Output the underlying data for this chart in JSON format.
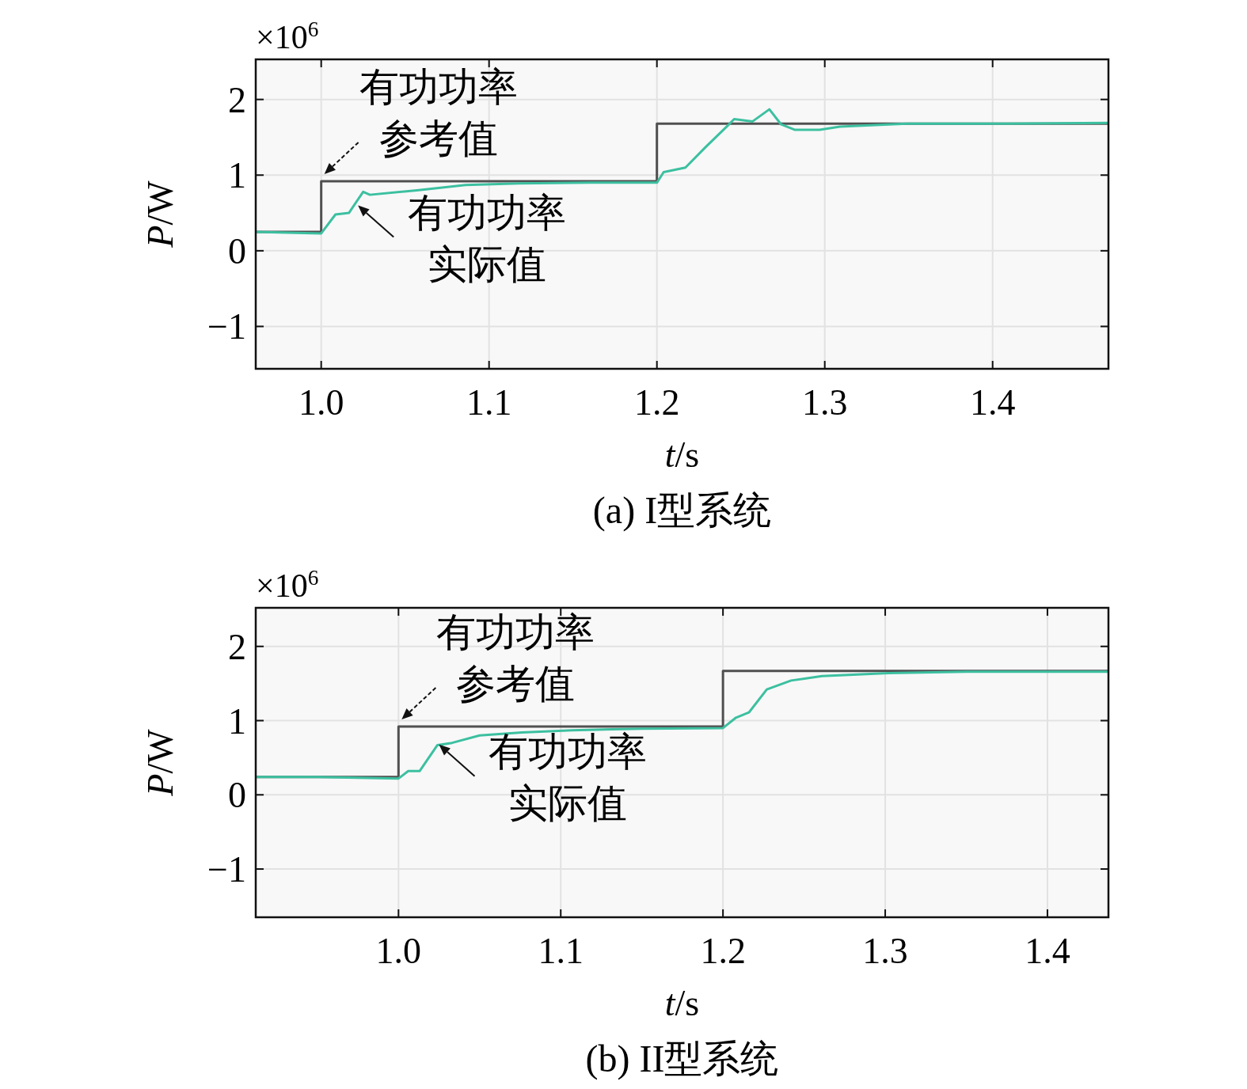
{
  "chart_data": [
    {
      "type": "line",
      "title": "(a) I型系统",
      "xlabel": "t/s",
      "ylabel": "P/W",
      "annotations": [
        "×10$^{6}$",
        {
          "text": "有功功率参考值",
          "x": 1.0,
          "y": 0.92
        },
        {
          "text": "有功功率实际值",
          "x": 1.021,
          "y": 0.62
        }
      ],
      "xlim": [
        0.961,
        1.469
      ],
      "xticks": [
        {
          "value": 1,
          "label": "1.0"
        },
        1.1,
        1.2,
        1.3,
        1.4
      ],
      "ylim": [
        -1.56,
        2.53
      ],
      "yticks": [
        {
          "value": -1,
          "label": "−1"
        },
        0,
        1,
        2
      ],
      "grid": true,
      "series": [
        {
          "type": "step",
          "color": "#505050",
          "x": [
            0.961,
            1.0,
            1.2,
            1.469
          ],
          "values": [
            0.25,
            0.92,
            1.68,
            1.68
          ]
        },
        {
          "color": "#3cc0a0",
          "x": [
            0.961,
            0.98,
            1.0,
            1.0085,
            1.0165,
            1.025,
            1.029,
            1.057,
            1.086,
            1.118,
            1.16,
            1.2,
            1.204,
            1.217,
            1.229,
            1.242,
            1.246,
            1.257,
            1.267,
            1.274,
            1.282,
            1.297,
            1.309,
            1.349,
            1.4,
            1.469
          ],
          "values": [
            0.25,
            0.24,
            0.23,
            0.48,
            0.5,
            0.78,
            0.74,
            0.8,
            0.87,
            0.89,
            0.9,
            0.9,
            1.04,
            1.1,
            1.37,
            1.65,
            1.74,
            1.71,
            1.87,
            1.67,
            1.6,
            1.6,
            1.64,
            1.68,
            1.68,
            1.69
          ]
        }
      ]
    },
    {
      "type": "line",
      "title": "(b) II型系统",
      "xlabel": "t/s",
      "ylabel": "P/W",
      "annotations": [
        "×10$^{6}$",
        {
          "text": "有功功率参考值",
          "x": 1.0,
          "y": 0.92
        },
        {
          "text": "有功功率实际值",
          "x": 1.024,
          "y": 0.7
        }
      ],
      "xlim": [
        0.912,
        1.4376
      ],
      "xticks": [
        {
          "value": 1,
          "label": "1.0"
        },
        1.1,
        1.2,
        1.3,
        1.4
      ],
      "ylim": [
        -1.65,
        2.52
      ],
      "yticks": [
        {
          "value": -1,
          "label": "−1"
        },
        0,
        1,
        2
      ],
      "grid": true,
      "series": [
        {
          "type": "step",
          "color": "#505050",
          "x": [
            0.912,
            1.0,
            1.2,
            1.4376
          ],
          "values": [
            0.24,
            0.92,
            1.67,
            1.67
          ]
        },
        {
          "color": "#3cc0a0",
          "x": [
            0.912,
            0.95,
            1.0,
            1.006,
            1.013,
            1.024,
            1.033,
            1.05,
            1.076,
            1.107,
            1.15,
            1.2,
            1.208,
            1.216,
            1.227,
            1.242,
            1.261,
            1.302,
            1.35,
            1.4376
          ],
          "values": [
            0.24,
            0.24,
            0.22,
            0.32,
            0.32,
            0.67,
            0.7,
            0.8,
            0.84,
            0.87,
            0.89,
            0.9,
            1.04,
            1.11,
            1.42,
            1.54,
            1.6,
            1.64,
            1.66,
            1.66
          ]
        }
      ]
    }
  ]
}
